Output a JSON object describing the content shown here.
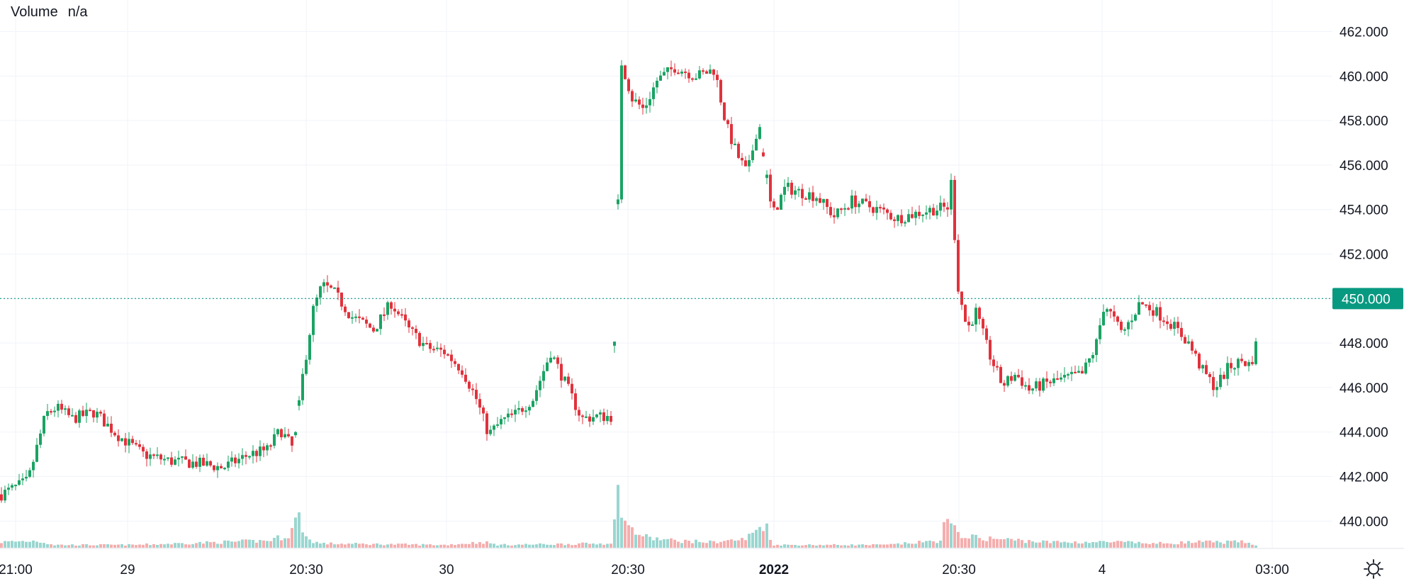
{
  "legend": {
    "label": "Volume",
    "value": "n/a"
  },
  "colors": {
    "up": "#089981",
    "down": "#f23645",
    "candle_up": "#1aa363",
    "candle_down": "#e0323c",
    "vol_up": "#9ad6d0",
    "vol_down": "#f5aeae",
    "grid": "#f0f3fa",
    "last_price": "#089981"
  },
  "settings_icon": "gear-icon",
  "chart_data": {
    "type": "candlestick",
    "y_axis_ticks": [
      "462.000",
      "460.000",
      "458.000",
      "456.000",
      "454.000",
      "452.000",
      "450.000",
      "448.000",
      "446.000",
      "444.000",
      "442.000",
      "440.000"
    ],
    "y_range": [
      438.8,
      463.1
    ],
    "last_price": {
      "value": 450.0,
      "label": "450.000"
    },
    "x_axis_labels": [
      {
        "label": "21:00",
        "bold": false
      },
      {
        "label": "29",
        "bold": false
      },
      {
        "label": "20:30",
        "bold": false
      },
      {
        "label": "30",
        "bold": false
      },
      {
        "label": "20:30",
        "bold": false
      },
      {
        "label": "2022",
        "bold": true
      },
      {
        "label": "20:30",
        "bold": false
      },
      {
        "label": "4",
        "bold": false
      },
      {
        "label": "03:00",
        "bold": false
      }
    ],
    "price_path": [
      [
        0,
        441.2
      ],
      [
        30,
        441.8
      ],
      [
        50,
        444.8
      ],
      [
        62,
        445.1
      ],
      [
        80,
        444.6
      ],
      [
        105,
        444.9
      ],
      [
        130,
        443.9
      ],
      [
        160,
        443.0
      ],
      [
        190,
        442.7
      ],
      [
        220,
        442.6
      ],
      [
        250,
        442.4
      ],
      [
        280,
        443.0
      ],
      [
        300,
        443.2
      ],
      [
        315,
        444.1
      ],
      [
        330,
        443.2
      ],
      [
        340,
        446.5
      ],
      [
        352,
        449.5
      ],
      [
        362,
        450.6
      ],
      [
        375,
        450.3
      ],
      [
        395,
        449.2
      ],
      [
        420,
        448.6
      ],
      [
        440,
        449.8
      ],
      [
        460,
        448.6
      ],
      [
        480,
        447.8
      ],
      [
        500,
        447.6
      ],
      [
        520,
        446.8
      ],
      [
        535,
        445.6
      ],
      [
        550,
        443.9
      ],
      [
        565,
        444.5
      ],
      [
        580,
        444.8
      ],
      [
        600,
        445.5
      ],
      [
        620,
        447.6
      ],
      [
        640,
        445.9
      ],
      [
        655,
        444.6
      ],
      [
        670,
        444.7
      ],
      [
        690,
        444.7
      ],
      [
        700,
        460.6
      ],
      [
        712,
        459.0
      ],
      [
        725,
        458.5
      ],
      [
        740,
        459.8
      ],
      [
        760,
        460.4
      ],
      [
        785,
        460.0
      ],
      [
        805,
        460.3
      ],
      [
        818,
        457.8
      ],
      [
        830,
        456.5
      ],
      [
        842,
        455.6
      ],
      [
        855,
        458.0
      ],
      [
        870,
        453.7
      ],
      [
        885,
        455.0
      ],
      [
        900,
        454.8
      ],
      [
        920,
        454.6
      ],
      [
        940,
        453.7
      ],
      [
        960,
        454.4
      ],
      [
        990,
        454.0
      ],
      [
        1010,
        453.6
      ],
      [
        1030,
        453.8
      ],
      [
        1050,
        454.0
      ],
      [
        1068,
        454.1
      ],
      [
        1072,
        455.2
      ],
      [
        1080,
        450.5
      ],
      [
        1090,
        448.6
      ],
      [
        1100,
        449.4
      ],
      [
        1115,
        447.5
      ],
      [
        1130,
        446.1
      ],
      [
        1145,
        446.6
      ],
      [
        1160,
        445.9
      ],
      [
        1180,
        446.2
      ],
      [
        1200,
        446.4
      ],
      [
        1220,
        446.6
      ],
      [
        1235,
        447.8
      ],
      [
        1245,
        449.8
      ],
      [
        1265,
        448.4
      ],
      [
        1285,
        449.8
      ],
      [
        1300,
        449.5
      ],
      [
        1320,
        448.9
      ],
      [
        1340,
        448.0
      ],
      [
        1355,
        446.8
      ],
      [
        1370,
        446.0
      ],
      [
        1385,
        446.9
      ],
      [
        1400,
        447.2
      ],
      [
        1410,
        447.0
      ],
      [
        1418,
        448.2
      ]
    ],
    "volume_path": [
      [
        0,
        0.04
      ],
      [
        40,
        0.05
      ],
      [
        60,
        0.02
      ],
      [
        150,
        0.02
      ],
      [
        300,
        0.05
      ],
      [
        325,
        0.09
      ],
      [
        335,
        0.23
      ],
      [
        345,
        0.06
      ],
      [
        360,
        0.03
      ],
      [
        500,
        0.02
      ],
      [
        545,
        0.04
      ],
      [
        560,
        0.02
      ],
      [
        680,
        0.03
      ],
      [
        690,
        0.04
      ],
      [
        695,
        0.38
      ],
      [
        700,
        0.31
      ],
      [
        705,
        0.16
      ],
      [
        715,
        0.11
      ],
      [
        730,
        0.07
      ],
      [
        760,
        0.05
      ],
      [
        800,
        0.04
      ],
      [
        840,
        0.06
      ],
      [
        862,
        0.18
      ],
      [
        870,
        0.02
      ],
      [
        1000,
        0.02
      ],
      [
        1040,
        0.04
      ],
      [
        1060,
        0.05
      ],
      [
        1066,
        0.2
      ],
      [
        1072,
        0.14
      ],
      [
        1085,
        0.09
      ],
      [
        1100,
        0.07
      ],
      [
        1130,
        0.06
      ],
      [
        1180,
        0.04
      ],
      [
        1230,
        0.04
      ],
      [
        1260,
        0.04
      ],
      [
        1300,
        0.03
      ],
      [
        1350,
        0.04
      ],
      [
        1400,
        0.04
      ],
      [
        1418,
        0.02
      ],
      [
        1422,
        0.26
      ]
    ]
  }
}
